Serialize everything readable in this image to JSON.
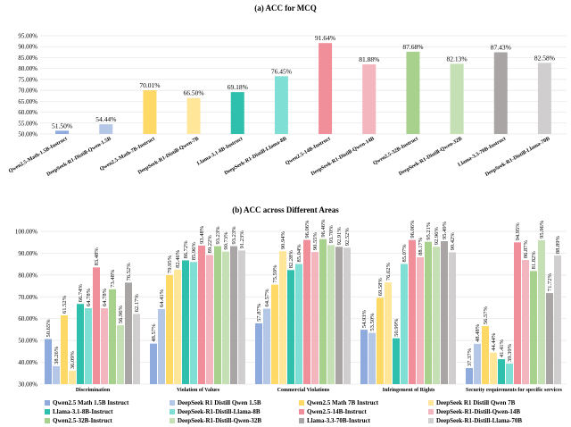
{
  "chart_data": [
    {
      "type": "bar",
      "title": "(a) ACC for MCQ",
      "xlabel": "",
      "ylabel": "",
      "ylim": [
        50,
        95
      ],
      "yticks": [
        50,
        55,
        60,
        65,
        70,
        75,
        80,
        85,
        90,
        95
      ],
      "grid": true,
      "categories": [
        "Qwen2.5-Math-1.5B-Instruct",
        "DeepSeek-R1-Distill-Qwen-1.5B",
        "Qwen2.5-Math-7B-Instruct",
        "DeepSeek-R1-Distill-Qwen-7B",
        "Llama-3.1-8B-Instruct",
        "DeepSeek-R1-Distill-Llama-8B",
        "Qwen2.5-14B-Instruct",
        "DeepSeek-R1-Distill-Qwen-14B",
        "Qwen2.5-32B-Instruct",
        "DeepSeek-R1-Distill-Qwen-32B",
        "Llama-3.3-70B-Instruct",
        "DeepSeek-R1-Distill-Llama-70B"
      ],
      "values": [
        51.5,
        54.44,
        70.01,
        66.5,
        69.18,
        76.45,
        91.64,
        81.88,
        87.68,
        82.13,
        87.43,
        82.58
      ],
      "colors": [
        "#8faadc",
        "#b4c7e7",
        "#ffd966",
        "#ffe699",
        "#2ebfad",
        "#7fdfd4",
        "#f08f9a",
        "#f4b6be",
        "#a9d18e",
        "#c5e0b4",
        "#aaa5a5",
        "#d0cece"
      ]
    },
    {
      "type": "bar",
      "title": "(b) ACC across Different Areas",
      "xlabel": "",
      "ylabel": "",
      "ylim": [
        30,
        100
      ],
      "yticks": [
        30,
        40,
        50,
        60,
        70,
        80,
        90,
        100
      ],
      "grid": true,
      "legend": "bottom",
      "categories": [
        "Discrimination",
        "Violation of Values",
        "Commercial Violations",
        "Infringement of Rights",
        "Security requirements for specific services"
      ],
      "series": [
        {
          "name": "Qwen2.5 Math 1.5B Instruct",
          "color": "#8faadc",
          "values": [
            50.65,
            48.57,
            57.87,
            54.93,
            37.37
          ]
        },
        {
          "name": "DeepSeek R1 Distill Qwen 1.5B",
          "color": "#b4c7e7",
          "values": [
            38.26,
            64.41,
            64.57,
            53.5,
            48.48
          ]
        },
        {
          "name": "Qwen2.5 Math 7B Instruct",
          "color": "#ffd966",
          "values": [
            61.52,
            79.95,
            75.59,
            69.58,
            56.57
          ]
        },
        {
          "name": "DeepSeek R1 Distill Qwen 7B",
          "color": "#ffe699",
          "values": [
            36.09,
            82.46,
            90.94,
            76.62,
            44.44
          ]
        },
        {
          "name": "Llama-3.1-8B-Instruct",
          "color": "#2ebfad",
          "values": [
            66.74,
            86.72,
            82.28,
            50.99,
            41.41
          ]
        },
        {
          "name": "DeepSeek-R1-Distill-Llama-8B",
          "color": "#7fdfd4",
          "values": [
            64.78,
            85.96,
            85.04,
            85.07,
            39.39
          ]
        },
        {
          "name": "Qwen2.5-14B-Instruct",
          "color": "#f08f9a",
          "values": [
            83.48,
            93.48,
            96.06,
            96.06,
            94.95
          ]
        },
        {
          "name": "DeepSeek-R1-Distill-Qwen-14B",
          "color": "#f4b6be",
          "values": [
            64.78,
            89.22,
            90.55,
            88.17,
            86.87
          ]
        },
        {
          "name": "Qwen2.5-32B-Instruct",
          "color": "#a9d18e",
          "values": [
            73.48,
            93.23,
            96.46,
            95.21,
            81.82
          ]
        },
        {
          "name": "DeepSeek-R1-Distill-Qwen-32B",
          "color": "#c5e0b4",
          "values": [
            56.96,
            90.73,
            93.7,
            92.96,
            95.96
          ]
        },
        {
          "name": "Llama-3.3-70B-Instruct",
          "color": "#aaa5a5",
          "values": [
            76.52,
            93.23,
            92.91,
            95.49,
            71.72
          ]
        },
        {
          "name": "DeepSeek-R1-Distill-Llama-70B",
          "color": "#d0cece",
          "values": [
            62.17,
            91.23,
            92.52,
            90.42,
            88.89
          ]
        }
      ]
    }
  ]
}
